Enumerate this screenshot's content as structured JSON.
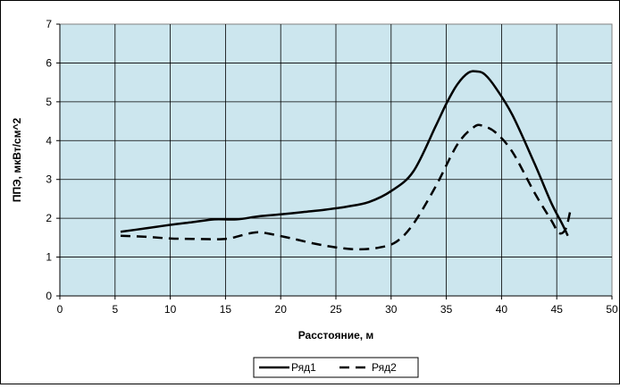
{
  "chart_data": {
    "type": "line",
    "xlabel": "Расстояние, м",
    "ylabel": "ППЭ, мкВт/см^2",
    "xlim": [
      0,
      50
    ],
    "ylim": [
      0,
      7
    ],
    "x_ticks": [
      0,
      5,
      10,
      15,
      20,
      25,
      30,
      35,
      40,
      45,
      50
    ],
    "y_ticks": [
      0,
      1,
      2,
      3,
      4,
      5,
      6,
      7
    ],
    "grid": true,
    "plot_background": "#cce6ee",
    "legend_position": "bottom",
    "series": [
      {
        "name": "Ряд1",
        "style": "solid",
        "color": "#000000",
        "x": [
          5.5,
          8,
          10,
          12,
          14,
          16,
          18,
          20,
          22,
          24,
          26,
          28,
          30,
          32,
          34,
          35,
          36,
          37,
          37.8,
          38.5,
          39.5,
          41,
          43,
          44.5,
          45.5,
          46
        ],
        "y": [
          1.65,
          1.75,
          1.83,
          1.9,
          1.97,
          1.97,
          2.05,
          2.1,
          2.16,
          2.22,
          2.3,
          2.42,
          2.7,
          3.2,
          4.35,
          4.95,
          5.45,
          5.75,
          5.78,
          5.7,
          5.35,
          4.65,
          3.4,
          2.4,
          1.85,
          1.55
        ]
      },
      {
        "name": "Ряд2",
        "style": "dashed",
        "color": "#000000",
        "x": [
          5.5,
          8,
          10,
          12,
          15,
          17,
          18,
          19,
          21,
          23,
          25,
          27,
          29,
          30.5,
          32,
          34,
          36,
          37.5,
          38.3,
          39.5,
          41,
          43,
          44.5,
          45.2,
          45.8,
          46.2
        ],
        "y": [
          1.55,
          1.52,
          1.48,
          1.47,
          1.47,
          1.6,
          1.64,
          1.6,
          1.48,
          1.35,
          1.25,
          1.2,
          1.25,
          1.4,
          1.85,
          2.8,
          3.9,
          4.35,
          4.38,
          4.2,
          3.7,
          2.65,
          1.95,
          1.62,
          1.72,
          2.15
        ]
      }
    ]
  }
}
